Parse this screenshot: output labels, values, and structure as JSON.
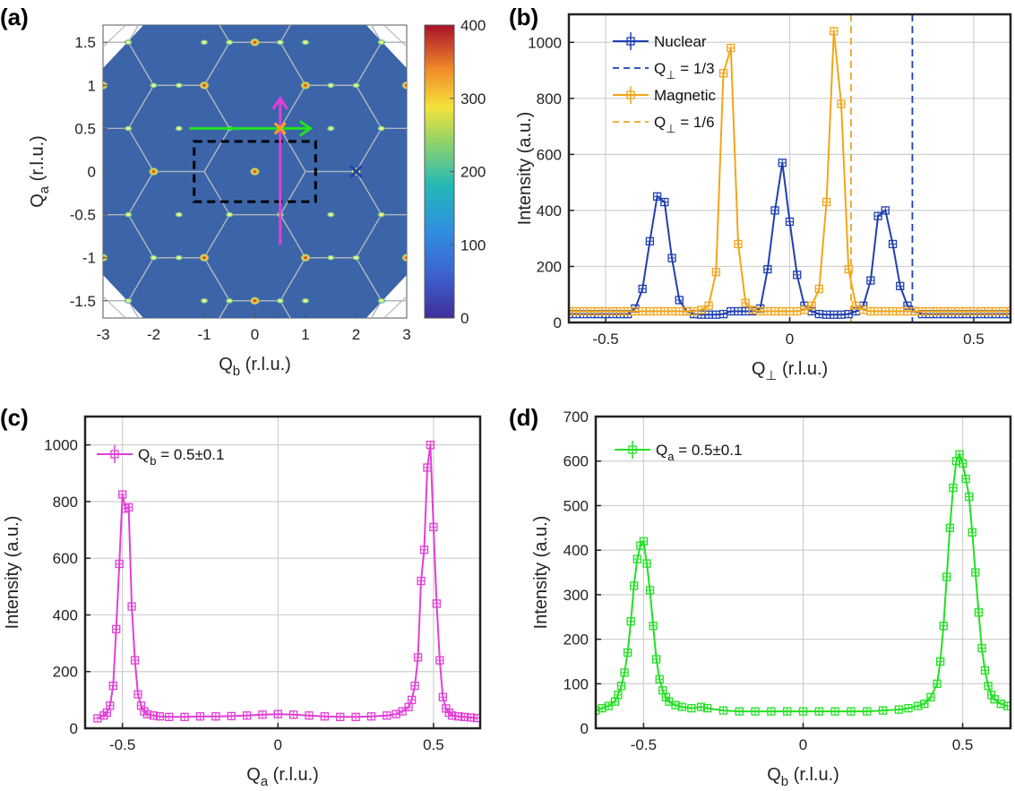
{
  "panel_labels": [
    "(a)",
    "(b)",
    "(c)",
    "(d)"
  ],
  "colors": {
    "nuclear": "#1f3fb0",
    "magnetic": "#f2a51a",
    "pink": "#e040d6",
    "green": "#22e022",
    "map_bg": "#3a63a8",
    "grid": "#cfcfcf"
  },
  "chart_data": [
    {
      "id": "a",
      "type": "heatmap",
      "title": "",
      "xlabel": "Q",
      "xlabel_sub": "b",
      "xlabel_unit": " (r.l.u.)",
      "ylabel": "Q",
      "ylabel_sub": "a",
      "ylabel_unit": " (r.l.u.)",
      "xlim": [
        -3,
        3
      ],
      "ylim": [
        -1.7,
        1.7
      ],
      "xticks": [
        "-3",
        "-2",
        "-1",
        "0",
        "1",
        "2",
        "3"
      ],
      "yticks": [
        "1.5",
        "1",
        "0.5",
        "0",
        "-0.5",
        "-1",
        "-1.5"
      ],
      "colorbar": {
        "range": [
          0,
          400
        ],
        "ticks": [
          "400",
          "300",
          "200",
          "100",
          "0"
        ]
      },
      "nuclear_peaks": [
        [
          0,
          0
        ],
        [
          2,
          0
        ],
        [
          -2,
          0
        ],
        [
          1,
          1
        ],
        [
          -1,
          1
        ],
        [
          1,
          -1
        ],
        [
          -1,
          -1
        ],
        [
          0,
          1.5
        ],
        [
          0,
          -1.5
        ],
        [
          3,
          1
        ],
        [
          -3,
          1
        ],
        [
          3,
          -1
        ],
        [
          -3,
          -1
        ]
      ],
      "magnetic_peaks": [
        [
          0.5,
          0.5
        ],
        [
          -0.5,
          0.5
        ],
        [
          0.5,
          -0.5
        ],
        [
          -0.5,
          -0.5
        ],
        [
          1.5,
          0.5
        ],
        [
          -1.5,
          0.5
        ],
        [
          1.5,
          -0.5
        ],
        [
          -1.5,
          -0.5
        ],
        [
          2.5,
          0.5
        ],
        [
          -2.5,
          0.5
        ],
        [
          2.5,
          -0.5
        ],
        [
          -2.5,
          -0.5
        ],
        [
          0.5,
          1.5
        ],
        [
          -0.5,
          1.5
        ],
        [
          0.5,
          -1.5
        ],
        [
          -0.5,
          -1.5
        ],
        [
          2,
          1
        ],
        [
          -2,
          1
        ],
        [
          2,
          -1
        ],
        [
          -2,
          -1
        ],
        [
          1,
          1.5
        ],
        [
          -1,
          1.5
        ],
        [
          1,
          -1.5
        ],
        [
          -1,
          -1.5
        ],
        [
          2.5,
          1.5
        ],
        [
          -2.5,
          1.5
        ],
        [
          2.5,
          -1.5
        ],
        [
          -2.5,
          -1.5
        ],
        [
          1.5,
          1
        ],
        [
          -1.5,
          1
        ],
        [
          1.5,
          -1
        ],
        [
          -1.5,
          -1
        ]
      ],
      "annotations": {
        "dashed_box": {
          "q_b": [
            -1.2,
            1.2
          ],
          "q_a": [
            -0.35,
            0.35
          ]
        },
        "green_arrow": {
          "from": [
            -1.3,
            0.5
          ],
          "to": [
            1.1,
            0.5
          ]
        },
        "magenta_arrow": {
          "from": [
            0.5,
            -0.85
          ],
          "to": [
            0.5,
            0.85
          ]
        },
        "orange_cross": [
          0.5,
          0.5
        ],
        "blue_cross": [
          2,
          0
        ]
      }
    },
    {
      "id": "b",
      "type": "line",
      "xlabel": "Q",
      "xlabel_sub": "⊥",
      "xlabel_unit": " (r.l.u.)",
      "ylabel": "Intensity (a.u.)",
      "xlim": [
        -0.6,
        0.6
      ],
      "ylim": [
        0,
        1100
      ],
      "xticks": [
        "-0.5",
        "0",
        "0.5"
      ],
      "yticks": [
        "0",
        "200",
        "400",
        "600",
        "800",
        "1000"
      ],
      "legend": [
        "Nuclear",
        "Q",
        "Magnetic",
        "Q"
      ],
      "legend_sub": [
        "",
        "⊥",
        "",
        "⊥"
      ],
      "legend_tail": [
        "",
        " = 1/3",
        "",
        " = 1/6"
      ],
      "series": [
        {
          "name": "Nuclear",
          "x": [
            -0.6,
            -0.58,
            -0.56,
            -0.54,
            -0.52,
            -0.5,
            -0.48,
            -0.46,
            -0.44,
            -0.42,
            -0.4,
            -0.38,
            -0.36,
            -0.34,
            -0.32,
            -0.3,
            -0.28,
            -0.26,
            -0.24,
            -0.22,
            -0.2,
            -0.18,
            -0.16,
            -0.14,
            -0.12,
            -0.1,
            -0.08,
            -0.06,
            -0.04,
            -0.02,
            0,
            0.02,
            0.04,
            0.06,
            0.08,
            0.1,
            0.12,
            0.14,
            0.16,
            0.18,
            0.2,
            0.22,
            0.24,
            0.26,
            0.28,
            0.3,
            0.32,
            0.34,
            0.36,
            0.38,
            0.4,
            0.42,
            0.44,
            0.46,
            0.48,
            0.5,
            0.52,
            0.54,
            0.56,
            0.58,
            0.6
          ],
          "values": [
            30,
            30,
            30,
            30,
            30,
            30,
            30,
            30,
            30,
            50,
            120,
            290,
            450,
            430,
            230,
            80,
            40,
            30,
            28,
            28,
            28,
            30,
            40,
            40,
            40,
            40,
            50,
            190,
            400,
            570,
            360,
            170,
            60,
            40,
            30,
            28,
            28,
            28,
            30,
            40,
            60,
            150,
            380,
            400,
            280,
            130,
            60,
            40,
            30,
            30,
            30,
            30,
            30,
            30,
            30,
            30,
            30,
            30,
            30,
            30,
            30
          ]
        },
        {
          "name": "Magnetic",
          "x": [
            -0.6,
            -0.58,
            -0.56,
            -0.54,
            -0.52,
            -0.5,
            -0.48,
            -0.46,
            -0.44,
            -0.42,
            -0.4,
            -0.38,
            -0.36,
            -0.34,
            -0.32,
            -0.3,
            -0.28,
            -0.26,
            -0.24,
            -0.22,
            -0.2,
            -0.18,
            -0.16,
            -0.14,
            -0.12,
            -0.1,
            -0.08,
            -0.06,
            -0.04,
            -0.02,
            0,
            0.02,
            0.04,
            0.06,
            0.08,
            0.1,
            0.12,
            0.14,
            0.16,
            0.18,
            0.2,
            0.22,
            0.24,
            0.26,
            0.28,
            0.3,
            0.32,
            0.34,
            0.36,
            0.38,
            0.4,
            0.42,
            0.44,
            0.46,
            0.48,
            0.5,
            0.52,
            0.54,
            0.56,
            0.58,
            0.6
          ],
          "values": [
            40,
            40,
            40,
            40,
            40,
            40,
            40,
            40,
            40,
            40,
            40,
            40,
            40,
            40,
            40,
            40,
            40,
            40,
            45,
            60,
            180,
            890,
            980,
            280,
            70,
            45,
            40,
            40,
            40,
            40,
            40,
            40,
            45,
            60,
            120,
            430,
            1040,
            780,
            190,
            60,
            45,
            40,
            40,
            40,
            40,
            40,
            40,
            40,
            40,
            40,
            40,
            40,
            40,
            40,
            40,
            40,
            40,
            40,
            40,
            40,
            40
          ]
        }
      ],
      "reference_lines": [
        {
          "x": 0.3333,
          "color": "nuclear"
        },
        {
          "x": 0.1667,
          "color": "magnetic"
        }
      ]
    },
    {
      "id": "c",
      "type": "line",
      "xlabel": "Q",
      "xlabel_sub": "a",
      "xlabel_unit": " (r.l.u.)",
      "ylabel": "Intensity (a.u.)",
      "xlim": [
        -0.62,
        0.65
      ],
      "ylim": [
        0,
        1100
      ],
      "xticks": [
        "-0.5",
        "0",
        "0.5"
      ],
      "yticks": [
        "0",
        "200",
        "400",
        "600",
        "800",
        "1000"
      ],
      "legend": [
        "Q"
      ],
      "legend_sub": [
        "b"
      ],
      "legend_tail": [
        " = 0.5±0.1"
      ],
      "series": [
        {
          "name": "Q_b = 0.5±0.1",
          "x": [
            -0.58,
            -0.56,
            -0.55,
            -0.54,
            -0.53,
            -0.52,
            -0.51,
            -0.5,
            -0.49,
            -0.48,
            -0.47,
            -0.46,
            -0.45,
            -0.44,
            -0.43,
            -0.42,
            -0.4,
            -0.38,
            -0.35,
            -0.3,
            -0.25,
            -0.2,
            -0.15,
            -0.1,
            -0.05,
            0,
            0.05,
            0.1,
            0.15,
            0.2,
            0.25,
            0.3,
            0.35,
            0.38,
            0.4,
            0.42,
            0.43,
            0.44,
            0.45,
            0.46,
            0.47,
            0.48,
            0.49,
            0.5,
            0.51,
            0.52,
            0.53,
            0.54,
            0.55,
            0.56,
            0.58,
            0.6,
            0.62,
            0.64
          ],
          "values": [
            35,
            45,
            55,
            80,
            150,
            350,
            580,
            825,
            775,
            780,
            430,
            240,
            120,
            80,
            60,
            50,
            45,
            42,
            40,
            40,
            42,
            42,
            43,
            45,
            48,
            50,
            48,
            45,
            42,
            40,
            40,
            42,
            45,
            50,
            60,
            75,
            100,
            150,
            250,
            520,
            630,
            920,
            1000,
            710,
            440,
            240,
            110,
            70,
            55,
            45,
            42,
            40,
            38,
            36
          ]
        }
      ]
    },
    {
      "id": "d",
      "type": "line",
      "xlabel": "Q",
      "xlabel_sub": "b",
      "xlabel_unit": " (r.l.u.)",
      "ylabel": "Intensity (a.u.)",
      "xlim": [
        -0.65,
        0.65
      ],
      "ylim": [
        0,
        700
      ],
      "xticks": [
        "-0.5",
        "0",
        "0.5"
      ],
      "yticks": [
        "0",
        "100",
        "200",
        "300",
        "400",
        "500",
        "600",
        "700"
      ],
      "legend": [
        "Q"
      ],
      "legend_sub": [
        "a"
      ],
      "legend_tail": [
        " = 0.5±0.1"
      ],
      "series": [
        {
          "name": "Q_a = 0.5±0.1",
          "x": [
            -0.65,
            -0.63,
            -0.61,
            -0.59,
            -0.58,
            -0.57,
            -0.56,
            -0.55,
            -0.54,
            -0.53,
            -0.52,
            -0.51,
            -0.5,
            -0.49,
            -0.48,
            -0.47,
            -0.46,
            -0.45,
            -0.44,
            -0.43,
            -0.42,
            -0.4,
            -0.38,
            -0.35,
            -0.32,
            -0.3,
            -0.25,
            -0.2,
            -0.15,
            -0.1,
            -0.05,
            0,
            0.05,
            0.1,
            0.15,
            0.2,
            0.25,
            0.3,
            0.33,
            0.36,
            0.38,
            0.4,
            0.42,
            0.43,
            0.44,
            0.45,
            0.46,
            0.47,
            0.48,
            0.49,
            0.5,
            0.51,
            0.52,
            0.53,
            0.54,
            0.55,
            0.56,
            0.57,
            0.58,
            0.59,
            0.6,
            0.62,
            0.64
          ],
          "values": [
            40,
            45,
            50,
            60,
            75,
            95,
            125,
            170,
            240,
            320,
            380,
            410,
            420,
            370,
            310,
            230,
            155,
            110,
            85,
            70,
            60,
            52,
            48,
            45,
            48,
            45,
            40,
            38,
            38,
            38,
            38,
            38,
            38,
            38,
            38,
            38,
            40,
            42,
            45,
            50,
            55,
            70,
            100,
            150,
            230,
            340,
            450,
            540,
            600,
            615,
            595,
            560,
            520,
            440,
            350,
            260,
            180,
            130,
            95,
            75,
            65,
            55,
            50
          ]
        }
      ]
    }
  ]
}
